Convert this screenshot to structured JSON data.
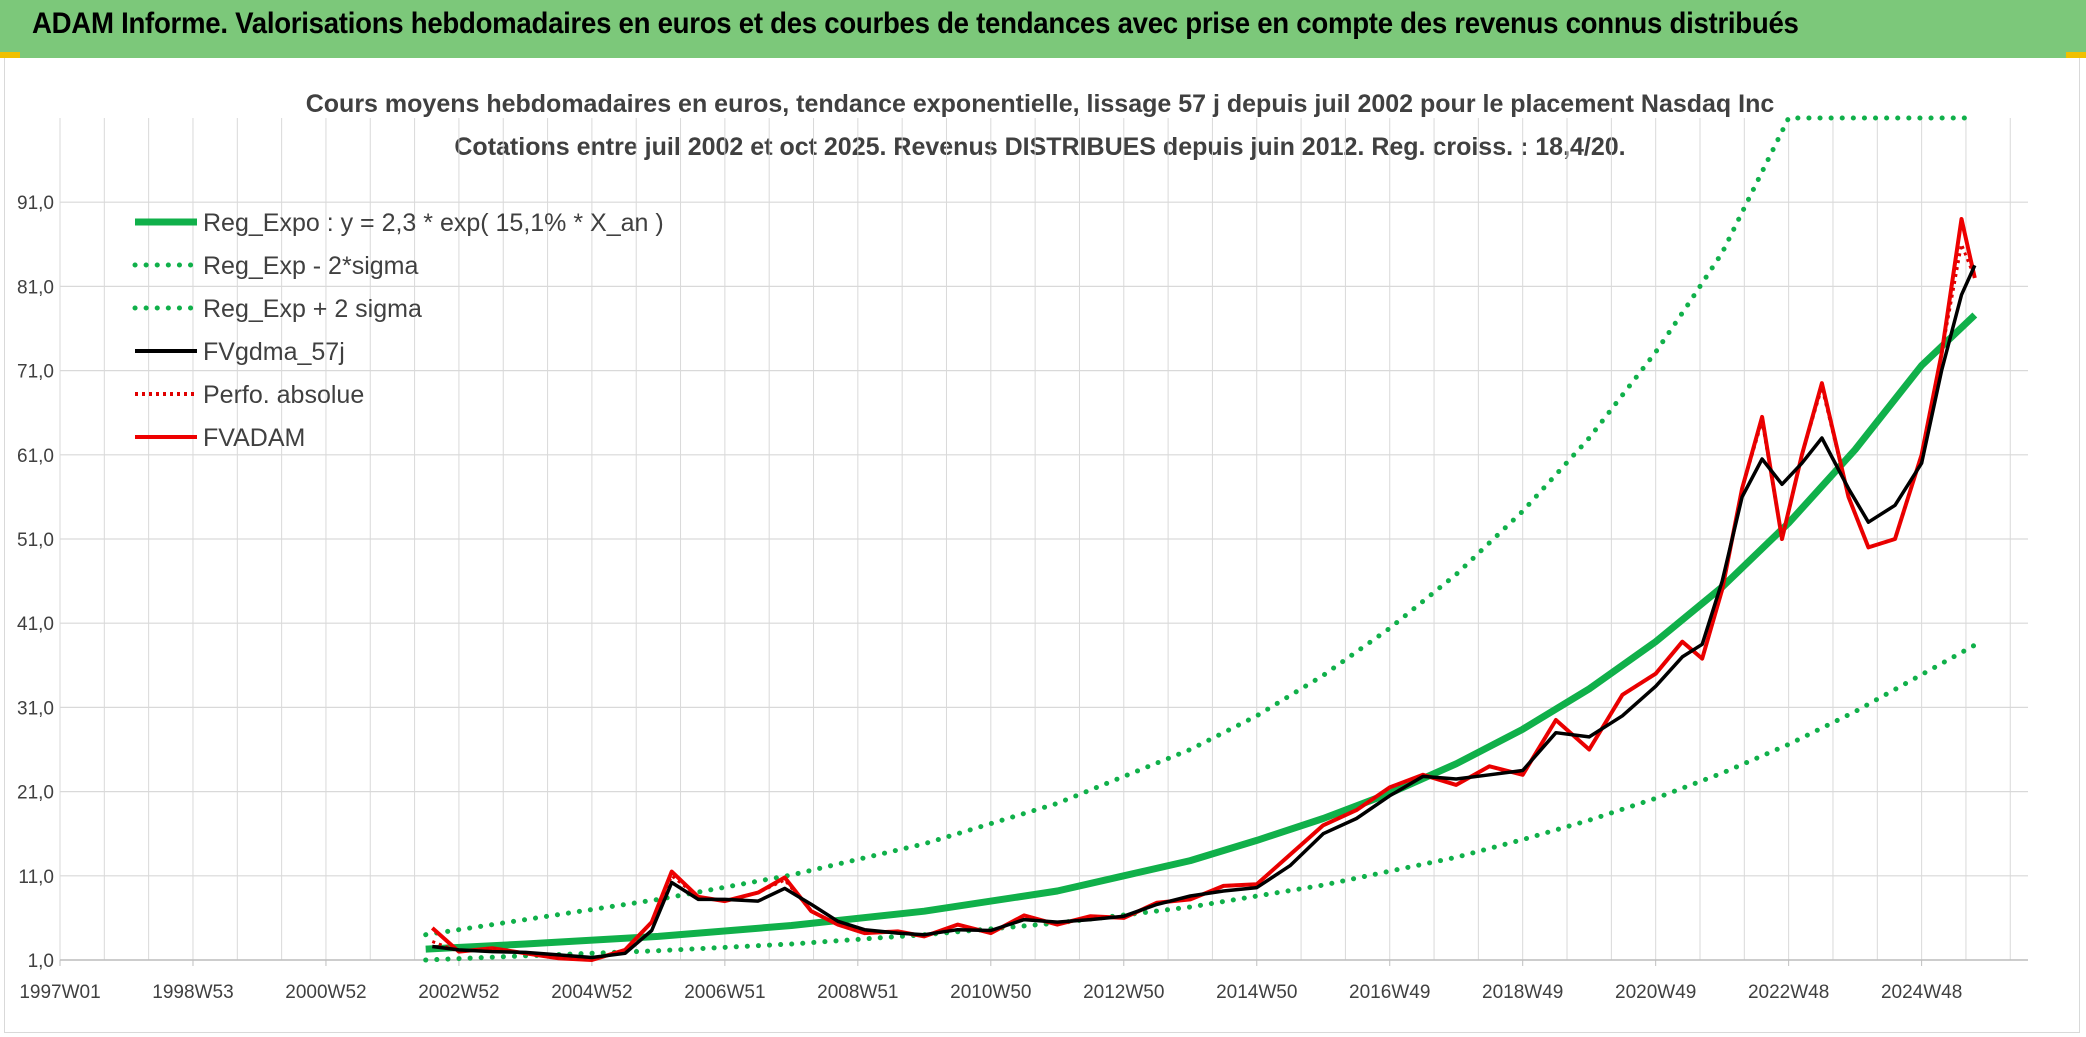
{
  "banner": {
    "title": "ADAM Informe. Valorisations hebdomadaires en euros et des courbes de tendances avec prise en compte des revenus connus distribués",
    "color": "#7cc87a"
  },
  "colors": {
    "trend": "#10b04a",
    "sigma": "#10b04a",
    "smoothed": "#000000",
    "perf": "#e00000",
    "fvadam": "#ee0000",
    "grid": "#d9d9d9"
  },
  "chart_data": {
    "type": "line",
    "title": "Cours moyens hebdomadaires en euros, tendance exponentielle, lissage 57 j depuis juil 2002 pour le placement Nasdaq Inc",
    "subtitle": "Cotations entre juil 2002 et oct 2025. Revenus DISTRIBUES depuis juin 2012. Reg. croiss. : 18,4/20.",
    "xlabel": "",
    "ylabel": "",
    "x_range": [
      1997.0,
      2026.6
    ],
    "ylim": [
      1.0,
      101.0
    ],
    "y_ticks": [
      "91,0",
      "81,0",
      "71,0",
      "61,0",
      "51,0",
      "41,0",
      "31,0",
      "21,0",
      "11,0",
      "1,0"
    ],
    "y_tick_values": [
      91,
      81,
      71,
      61,
      51,
      41,
      31,
      21,
      11,
      1
    ],
    "x_ticks": [
      "1997W01",
      "1998W53",
      "2000W52",
      "2002W52",
      "2004W52",
      "2006W51",
      "2008W51",
      "2010W50",
      "2012W50",
      "2014W50",
      "2016W49",
      "2018W49",
      "2020W49",
      "2022W48",
      "2024W48"
    ],
    "x_tick_values": [
      1997.0,
      1999.0,
      2001.0,
      2003.0,
      2005.0,
      2007.0,
      2009.0,
      2011.0,
      2013.0,
      2015.0,
      2017.0,
      2019.0,
      2021.0,
      2023.0,
      2025.0
    ],
    "legend_position": "top-left",
    "legend": [
      "Reg_Expo : y = 2,3 * exp( 15,1% *  X_an )",
      "Reg_Exp - 2*sigma",
      "Reg_Exp + 2 sigma",
      "FVgdma_57j",
      "Perfo. absolue",
      "FVADAM"
    ],
    "series": [
      {
        "name": "Reg_Expo : y = 2,3 * exp( 15,1% *  X_an )",
        "x": [
          2002.5,
          2004.0,
          2006.0,
          2008.0,
          2010.0,
          2012.0,
          2013.0,
          2014.0,
          2015.0,
          2016.0,
          2017.0,
          2018.0,
          2019.0,
          2020.0,
          2021.0,
          2022.0,
          2023.0,
          2024.0,
          2025.0,
          2025.8
        ],
        "y": [
          2.3,
          2.9,
          3.8,
          5.1,
          6.8,
          9.2,
          11.0,
          12.8,
          15.2,
          17.8,
          20.8,
          24.3,
          28.4,
          33.2,
          38.8,
          45.3,
          52.9,
          61.6,
          71.6,
          77.6
        ]
      },
      {
        "name": "Reg_Exp - 2*sigma",
        "x": [
          2002.5,
          2004.0,
          2006.0,
          2008.0,
          2010.0,
          2012.0,
          2014.0,
          2016.0,
          2018.0,
          2019.0,
          2020.0,
          2021.0,
          2022.0,
          2023.0,
          2024.0,
          2025.0,
          2025.8
        ],
        "y": [
          1.0,
          1.5,
          2.1,
          2.9,
          4.0,
          5.4,
          7.3,
          9.9,
          13.2,
          15.3,
          17.6,
          20.2,
          23.2,
          26.6,
          30.5,
          34.9,
          38.4
        ]
      },
      {
        "name": "Reg_Exp + 2 sigma",
        "x": [
          2002.5,
          2004.0,
          2006.0,
          2008.0,
          2010.0,
          2012.0,
          2014.0,
          2015.0,
          2016.0,
          2017.0,
          2018.0,
          2019.0,
          2020.0,
          2021.0,
          2021.5,
          2022.0,
          2023.0,
          2024.0,
          2025.0,
          2025.8
        ],
        "y": [
          4.0,
          5.8,
          8.2,
          11.1,
          14.8,
          19.6,
          26.0,
          30.0,
          34.8,
          40.4,
          46.8,
          54.3,
          63.0,
          73.2,
          79.0,
          85.0,
          101.0,
          101.0,
          101.0,
          101.0
        ]
      },
      {
        "name": "FVgdma_57j",
        "x": [
          2002.6,
          2003.0,
          2003.5,
          2004.0,
          2004.5,
          2005.0,
          2005.5,
          2005.9,
          2006.2,
          2006.6,
          2007.0,
          2007.5,
          2007.9,
          2008.3,
          2008.7,
          2009.1,
          2009.6,
          2010.0,
          2010.5,
          2011.0,
          2011.5,
          2012.0,
          2012.5,
          2013.0,
          2013.5,
          2014.0,
          2014.5,
          2015.0,
          2015.5,
          2016.0,
          2016.5,
          2017.0,
          2017.5,
          2018.0,
          2018.5,
          2019.0,
          2019.5,
          2020.0,
          2020.5,
          2021.0,
          2021.4,
          2021.7,
          2022.0,
          2022.3,
          2022.6,
          2022.9,
          2023.2,
          2023.5,
          2023.9,
          2024.2,
          2024.6,
          2025.0,
          2025.3,
          2025.6,
          2025.8
        ],
        "y": [
          2.6,
          2.2,
          2.0,
          1.9,
          1.6,
          1.3,
          1.8,
          4.5,
          10.2,
          8.2,
          8.2,
          8.0,
          9.5,
          7.6,
          5.6,
          4.6,
          4.2,
          4.0,
          4.6,
          4.5,
          5.8,
          5.5,
          5.8,
          6.2,
          7.6,
          8.6,
          9.2,
          9.6,
          12.2,
          16.0,
          17.8,
          20.5,
          22.8,
          22.5,
          23.0,
          23.5,
          28.0,
          27.5,
          30.0,
          33.5,
          37.0,
          38.5,
          46.0,
          56.0,
          60.5,
          57.5,
          60.0,
          63.0,
          57.0,
          53.0,
          55.0,
          60.0,
          71.0,
          80.0,
          83.5
        ]
      },
      {
        "name": "Perfo. absolue",
        "x": [
          2002.6,
          2003.0,
          2003.5,
          2004.0,
          2004.5,
          2005.0,
          2005.5,
          2005.9,
          2006.2,
          2006.6,
          2007.0,
          2007.5,
          2007.9,
          2008.3,
          2008.7,
          2009.1,
          2009.6,
          2010.0,
          2010.5,
          2011.0,
          2011.5,
          2012.0,
          2012.5,
          2013.0,
          2013.5,
          2014.0,
          2014.5,
          2015.0,
          2015.5,
          2016.0,
          2016.5,
          2017.0,
          2017.5,
          2018.0,
          2018.5,
          2019.0,
          2019.5,
          2020.0,
          2020.5,
          2021.0,
          2021.4,
          2021.7,
          2022.0,
          2022.3,
          2022.6,
          2022.9,
          2023.2,
          2023.5,
          2023.9,
          2024.2,
          2024.6,
          2025.0,
          2025.3,
          2025.6,
          2025.8
        ],
        "y": [
          3.2,
          2.0,
          2.4,
          1.8,
          1.2,
          1.0,
          2.2,
          5.5,
          11.0,
          8.5,
          8.0,
          9.0,
          10.5,
          6.8,
          5.2,
          4.2,
          4.4,
          3.8,
          5.2,
          4.2,
          6.3,
          5.2,
          6.2,
          6.0,
          7.8,
          8.2,
          9.8,
          10.0,
          13.5,
          17.0,
          18.8,
          21.5,
          23.0,
          21.8,
          24.0,
          23.0,
          29.5,
          26.0,
          32.5,
          35.0,
          38.8,
          36.8,
          45.0,
          57.0,
          65.0,
          51.0,
          61.0,
          69.0,
          56.0,
          50.0,
          51.0,
          61.0,
          73.0,
          86.0,
          82.0
        ]
      },
      {
        "name": "FVADAM",
        "x": [
          2002.6,
          2003.0,
          2003.5,
          2004.0,
          2004.5,
          2005.0,
          2005.5,
          2005.9,
          2006.2,
          2006.6,
          2007.0,
          2007.5,
          2007.9,
          2008.3,
          2008.7,
          2009.1,
          2009.6,
          2010.0,
          2010.5,
          2011.0,
          2011.5,
          2012.0,
          2012.5,
          2013.0,
          2013.5,
          2014.0,
          2014.5,
          2015.0,
          2015.5,
          2016.0,
          2016.5,
          2017.0,
          2017.5,
          2018.0,
          2018.5,
          2019.0,
          2019.5,
          2020.0,
          2020.5,
          2021.0,
          2021.4,
          2021.7,
          2022.0,
          2022.3,
          2022.6,
          2022.9,
          2023.2,
          2023.5,
          2023.9,
          2024.2,
          2024.6,
          2025.0,
          2025.3,
          2025.6,
          2025.8
        ],
        "y": [
          4.8,
          2.0,
          2.4,
          1.8,
          1.2,
          1.0,
          2.2,
          5.5,
          11.5,
          8.5,
          8.0,
          9.0,
          10.8,
          6.8,
          5.2,
          4.2,
          4.4,
          3.8,
          5.2,
          4.2,
          6.3,
          5.2,
          6.2,
          6.0,
          7.8,
          8.2,
          9.8,
          10.0,
          13.5,
          17.0,
          18.8,
          21.5,
          23.0,
          21.8,
          24.0,
          23.0,
          29.5,
          26.0,
          32.5,
          35.0,
          38.8,
          36.8,
          45.0,
          57.0,
          65.5,
          51.0,
          61.0,
          69.5,
          56.0,
          50.0,
          51.0,
          61.0,
          73.0,
          89.0,
          82.0
        ]
      }
    ]
  }
}
